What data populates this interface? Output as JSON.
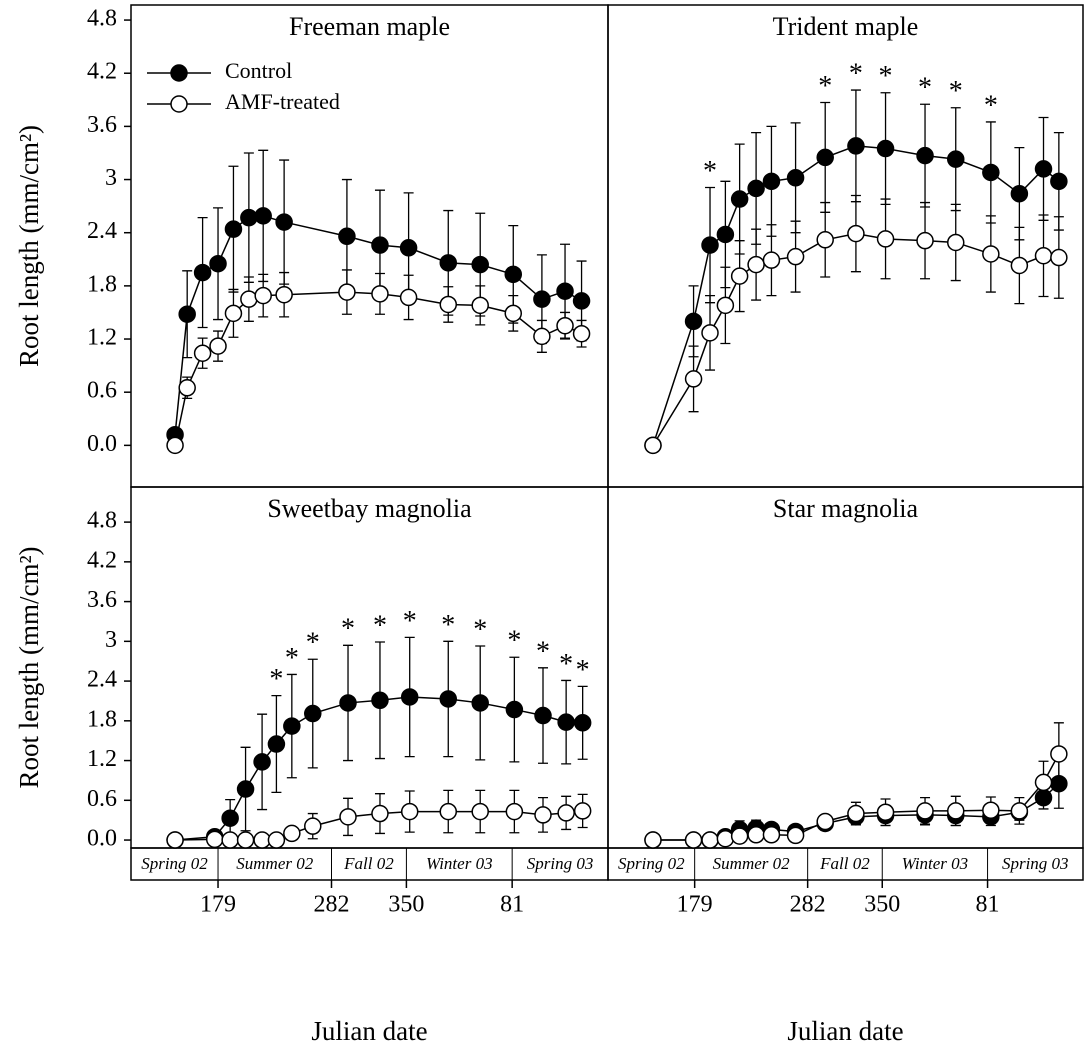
{
  "chart_data": [
    {
      "type": "line",
      "title": "Freeman maple",
      "ylabel": "Root length (mm/cm²)",
      "x": [
        140,
        151,
        165,
        179,
        193,
        207,
        220,
        239,
        296,
        326,
        352,
        388,
        417,
        447,
        473,
        494,
        509
      ],
      "xlim": [
        100,
        533
      ],
      "ylim": [
        -0.47,
        4.97
      ],
      "yticks": [
        {
          "value": 0,
          "label": "0.0"
        },
        0.6,
        1.2,
        1.8,
        2.4,
        3.0,
        3.6,
        4.2,
        4.8
      ],
      "series": [
        {
          "name": "Control",
          "color": "#000000",
          "values": [
            0.12,
            1.48,
            1.95,
            2.05,
            2.44,
            2.57,
            2.59,
            2.52,
            2.36,
            2.26,
            2.23,
            2.06,
            2.04,
            1.93,
            1.65,
            1.74,
            1.63
          ],
          "errors": [
            0.02,
            0.49,
            0.62,
            0.63,
            0.71,
            0.73,
            0.74,
            0.7,
            0.64,
            0.62,
            0.62,
            0.59,
            0.58,
            0.55,
            0.5,
            0.53,
            0.45
          ]
        },
        {
          "name": "AMF-treated",
          "color": "#ffffff",
          "values": [
            0,
            0.65,
            1.04,
            1.12,
            1.49,
            1.65,
            1.69,
            1.7,
            1.73,
            1.71,
            1.67,
            1.59,
            1.58,
            1.49,
            1.23,
            1.35,
            1.26
          ],
          "errors": [
            0,
            0.12,
            0.17,
            0.17,
            0.27,
            0.25,
            0.24,
            0.25,
            0.25,
            0.23,
            0.25,
            0.2,
            0.22,
            0.2,
            0.18,
            0.15,
            0.15
          ]
        }
      ]
    },
    {
      "type": "line",
      "title": "Trident maple",
      "x": [
        141,
        178,
        193,
        207,
        220,
        235,
        249,
        271,
        298,
        326,
        353,
        389,
        417,
        449,
        475,
        497,
        511
      ],
      "xlim": [
        100,
        533
      ],
      "ylim": [
        -0.47,
        4.97
      ],
      "asterisks": [
        null,
        null,
        "*",
        null,
        null,
        null,
        null,
        null,
        "*",
        "*",
        "*",
        "*",
        "*",
        "*",
        null,
        null,
        null
      ],
      "series": [
        {
          "color": "#000000",
          "values": [
            0,
            1.4,
            2.26,
            2.38,
            2.78,
            2.9,
            2.98,
            3.02,
            3.25,
            3.38,
            3.35,
            3.27,
            3.23,
            3.08,
            2.84,
            3.12,
            2.98
          ],
          "errors": [
            0,
            0.4,
            0.65,
            0.6,
            0.62,
            0.63,
            0.62,
            0.62,
            0.62,
            0.63,
            0.63,
            0.58,
            0.58,
            0.57,
            0.52,
            0.58,
            0.55
          ]
        },
        {
          "color": "#ffffff",
          "values": [
            0,
            0.75,
            1.27,
            1.58,
            1.91,
            2.04,
            2.09,
            2.13,
            2.32,
            2.39,
            2.33,
            2.31,
            2.29,
            2.16,
            2.03,
            2.14,
            2.12
          ],
          "errors": [
            0,
            0.37,
            0.42,
            0.43,
            0.4,
            0.4,
            0.4,
            0.4,
            0.42,
            0.43,
            0.45,
            0.43,
            0.43,
            0.43,
            0.43,
            0.46,
            0.46
          ]
        }
      ]
    },
    {
      "type": "line",
      "title": "Sweetbay magnolia",
      "ylabel": "Root length (mm/cm²)",
      "xlabel": "Julian date",
      "x": [
        140,
        176,
        190,
        204,
        219,
        232,
        246,
        265,
        297,
        326,
        353,
        388,
        417,
        448,
        474,
        495,
        510
      ],
      "xlim": [
        100,
        533
      ],
      "ylim": [
        -0.12,
        5.33
      ],
      "xticks": [
        179,
        282,
        350,
        {
          "value": 446,
          "label": "81"
        }
      ],
      "yticks": [
        {
          "value": 0,
          "label": "0.0"
        },
        0.6,
        1.2,
        1.8,
        2.4,
        3.0,
        3.6,
        4.2,
        4.8
      ],
      "seasons": [
        "Spring 02",
        "Summer 02",
        "Fall 02",
        "Winter 03",
        "Spring 03"
      ],
      "asterisks": [
        null,
        null,
        null,
        null,
        null,
        "*",
        "*",
        "*",
        "*",
        "*",
        "*",
        "*",
        "*",
        "*",
        "*",
        "*",
        "*"
      ],
      "series": [
        {
          "color": "#000000",
          "values": [
            0,
            0.05,
            0.33,
            0.77,
            1.18,
            1.45,
            1.72,
            1.91,
            2.07,
            2.11,
            2.16,
            2.13,
            2.07,
            1.97,
            1.88,
            1.78,
            1.77
          ],
          "errors": [
            0,
            0.02,
            0.28,
            0.63,
            0.72,
            0.73,
            0.78,
            0.82,
            0.87,
            0.88,
            0.9,
            0.87,
            0.86,
            0.79,
            0.72,
            0.63,
            0.55
          ]
        },
        {
          "color": "#ffffff",
          "values": [
            0,
            0.01,
            0,
            0,
            0,
            0,
            0.1,
            0.21,
            0.35,
            0.4,
            0.43,
            0.43,
            0.43,
            0.43,
            0.38,
            0.41,
            0.44
          ],
          "errors": [
            0,
            0,
            0,
            0,
            0,
            0,
            0.05,
            0.19,
            0.28,
            0.3,
            0.31,
            0.32,
            0.32,
            0.32,
            0.26,
            0.25,
            0.25
          ]
        }
      ]
    },
    {
      "type": "line",
      "title": "Star magnolia",
      "xlabel": "Julian date",
      "x": [
        141,
        178,
        193,
        207,
        220,
        235,
        249,
        271,
        298,
        326,
        353,
        389,
        417,
        449,
        475,
        497,
        511
      ],
      "xlim": [
        100,
        533
      ],
      "ylim": [
        -0.12,
        5.33
      ],
      "xticks": [
        179,
        282,
        350,
        {
          "value": 446,
          "label": "81"
        }
      ],
      "seasons": [
        "Spring 02",
        "Summer 02",
        "Fall 02",
        "Winter 03",
        "Spring 03"
      ],
      "series": [
        {
          "color": "#000000",
          "values": [
            0,
            0,
            0,
            0.05,
            0.16,
            0.18,
            0.16,
            0.13,
            0.25,
            0.35,
            0.37,
            0.38,
            0.37,
            0.35,
            0.42,
            0.64,
            0.85
          ],
          "errors": [
            0,
            0,
            0,
            0.03,
            0.13,
            0.12,
            0.08,
            0.09,
            0.1,
            0.12,
            0.15,
            0.15,
            0.15,
            0.13,
            0.12,
            0.17,
            0.37
          ]
        },
        {
          "color": "#ffffff",
          "values": [
            0,
            0,
            0,
            0.02,
            0.06,
            0.08,
            0.08,
            0.07,
            0.28,
            0.4,
            0.42,
            0.44,
            0.44,
            0.45,
            0.44,
            0.87,
            1.3
          ],
          "errors": [
            0,
            0,
            0,
            0.02,
            0.04,
            0.06,
            0.08,
            0.06,
            0.09,
            0.17,
            0.2,
            0.2,
            0.22,
            0.2,
            0.2,
            0.32,
            0.47
          ]
        }
      ]
    }
  ]
}
